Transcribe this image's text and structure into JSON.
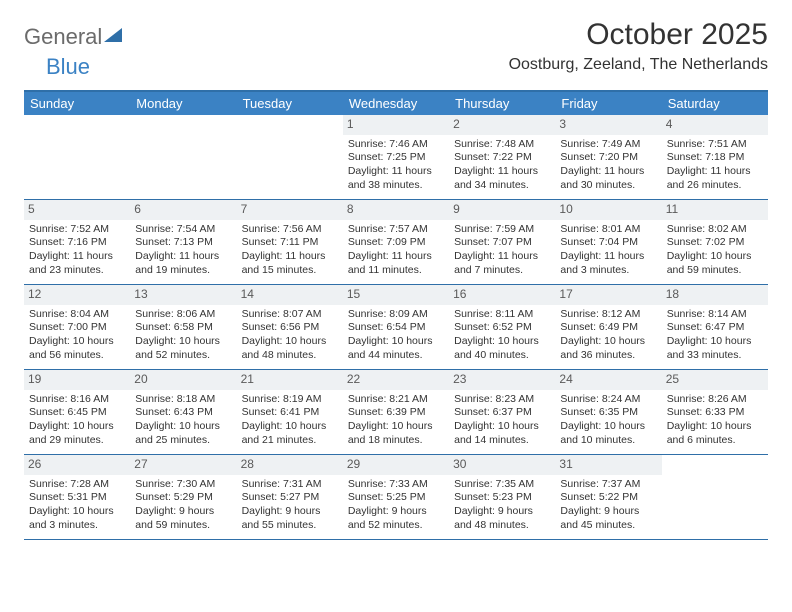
{
  "logo": {
    "part1": "General",
    "part2": "Blue"
  },
  "title": "October 2025",
  "location": "Oostburg, Zeeland, The Netherlands",
  "dows": [
    "Sunday",
    "Monday",
    "Tuesday",
    "Wednesday",
    "Thursday",
    "Friday",
    "Saturday"
  ],
  "colors": {
    "header_bg": "#3b82c4",
    "border": "#2f6fa8",
    "daynum_bg": "#eef1f3",
    "text": "#333333",
    "logo_gray": "#6b6b6b"
  },
  "weeks": [
    [
      {
        "n": "",
        "empty": true
      },
      {
        "n": "",
        "empty": true
      },
      {
        "n": "",
        "empty": true
      },
      {
        "n": "1",
        "sr": "7:46 AM",
        "ss": "7:25 PM",
        "dl": "11 hours and 38 minutes."
      },
      {
        "n": "2",
        "sr": "7:48 AM",
        "ss": "7:22 PM",
        "dl": "11 hours and 34 minutes."
      },
      {
        "n": "3",
        "sr": "7:49 AM",
        "ss": "7:20 PM",
        "dl": "11 hours and 30 minutes."
      },
      {
        "n": "4",
        "sr": "7:51 AM",
        "ss": "7:18 PM",
        "dl": "11 hours and 26 minutes."
      }
    ],
    [
      {
        "n": "5",
        "sr": "7:52 AM",
        "ss": "7:16 PM",
        "dl": "11 hours and 23 minutes."
      },
      {
        "n": "6",
        "sr": "7:54 AM",
        "ss": "7:13 PM",
        "dl": "11 hours and 19 minutes."
      },
      {
        "n": "7",
        "sr": "7:56 AM",
        "ss": "7:11 PM",
        "dl": "11 hours and 15 minutes."
      },
      {
        "n": "8",
        "sr": "7:57 AM",
        "ss": "7:09 PM",
        "dl": "11 hours and 11 minutes."
      },
      {
        "n": "9",
        "sr": "7:59 AM",
        "ss": "7:07 PM",
        "dl": "11 hours and 7 minutes."
      },
      {
        "n": "10",
        "sr": "8:01 AM",
        "ss": "7:04 PM",
        "dl": "11 hours and 3 minutes."
      },
      {
        "n": "11",
        "sr": "8:02 AM",
        "ss": "7:02 PM",
        "dl": "10 hours and 59 minutes."
      }
    ],
    [
      {
        "n": "12",
        "sr": "8:04 AM",
        "ss": "7:00 PM",
        "dl": "10 hours and 56 minutes."
      },
      {
        "n": "13",
        "sr": "8:06 AM",
        "ss": "6:58 PM",
        "dl": "10 hours and 52 minutes."
      },
      {
        "n": "14",
        "sr": "8:07 AM",
        "ss": "6:56 PM",
        "dl": "10 hours and 48 minutes."
      },
      {
        "n": "15",
        "sr": "8:09 AM",
        "ss": "6:54 PM",
        "dl": "10 hours and 44 minutes."
      },
      {
        "n": "16",
        "sr": "8:11 AM",
        "ss": "6:52 PM",
        "dl": "10 hours and 40 minutes."
      },
      {
        "n": "17",
        "sr": "8:12 AM",
        "ss": "6:49 PM",
        "dl": "10 hours and 36 minutes."
      },
      {
        "n": "18",
        "sr": "8:14 AM",
        "ss": "6:47 PM",
        "dl": "10 hours and 33 minutes."
      }
    ],
    [
      {
        "n": "19",
        "sr": "8:16 AM",
        "ss": "6:45 PM",
        "dl": "10 hours and 29 minutes."
      },
      {
        "n": "20",
        "sr": "8:18 AM",
        "ss": "6:43 PM",
        "dl": "10 hours and 25 minutes."
      },
      {
        "n": "21",
        "sr": "8:19 AM",
        "ss": "6:41 PM",
        "dl": "10 hours and 21 minutes."
      },
      {
        "n": "22",
        "sr": "8:21 AM",
        "ss": "6:39 PM",
        "dl": "10 hours and 18 minutes."
      },
      {
        "n": "23",
        "sr": "8:23 AM",
        "ss": "6:37 PM",
        "dl": "10 hours and 14 minutes."
      },
      {
        "n": "24",
        "sr": "8:24 AM",
        "ss": "6:35 PM",
        "dl": "10 hours and 10 minutes."
      },
      {
        "n": "25",
        "sr": "8:26 AM",
        "ss": "6:33 PM",
        "dl": "10 hours and 6 minutes."
      }
    ],
    [
      {
        "n": "26",
        "sr": "7:28 AM",
        "ss": "5:31 PM",
        "dl": "10 hours and 3 minutes."
      },
      {
        "n": "27",
        "sr": "7:30 AM",
        "ss": "5:29 PM",
        "dl": "9 hours and 59 minutes."
      },
      {
        "n": "28",
        "sr": "7:31 AM",
        "ss": "5:27 PM",
        "dl": "9 hours and 55 minutes."
      },
      {
        "n": "29",
        "sr": "7:33 AM",
        "ss": "5:25 PM",
        "dl": "9 hours and 52 minutes."
      },
      {
        "n": "30",
        "sr": "7:35 AM",
        "ss": "5:23 PM",
        "dl": "9 hours and 48 minutes."
      },
      {
        "n": "31",
        "sr": "7:37 AM",
        "ss": "5:22 PM",
        "dl": "9 hours and 45 minutes."
      },
      {
        "n": "",
        "empty": true
      }
    ]
  ],
  "labels": {
    "sunrise": "Sunrise:",
    "sunset": "Sunset:",
    "daylight": "Daylight:"
  }
}
